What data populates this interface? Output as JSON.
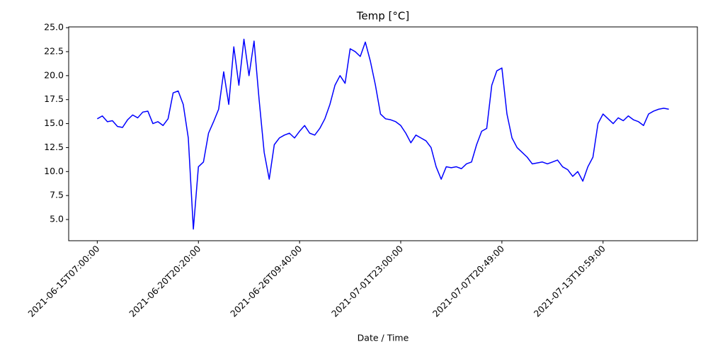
{
  "chart_data": {
    "type": "line",
    "title": "Temp [°C]",
    "xlabel": "Date / Time",
    "categories": [
      "2021-06-15T07:00:00",
      null,
      null,
      null,
      null,
      null,
      null,
      null,
      null,
      null,
      null,
      null,
      null,
      null,
      null,
      null,
      null,
      null,
      null,
      null,
      "2021-06-20T20:20:00",
      null,
      null,
      null,
      null,
      null,
      null,
      null,
      null,
      null,
      null,
      null,
      null,
      null,
      null,
      null,
      null,
      null,
      null,
      null,
      "2021-06-26T09:40:00",
      null,
      null,
      null,
      null,
      null,
      null,
      null,
      null,
      null,
      null,
      null,
      null,
      null,
      null,
      null,
      null,
      null,
      null,
      null,
      "2021-07-01T23:00:00",
      null,
      null,
      null,
      null,
      null,
      null,
      null,
      null,
      null,
      null,
      null,
      null,
      null,
      null,
      null,
      null,
      null,
      null,
      null,
      "2021-07-07T20:49:00",
      null,
      null,
      null,
      null,
      null,
      null,
      null,
      null,
      null,
      null,
      null,
      null,
      null,
      null,
      null,
      null,
      null,
      null,
      null,
      "2021-07-13T10:59:00",
      null,
      null,
      null,
      null,
      null,
      null,
      null,
      null,
      null,
      null,
      null,
      null,
      null
    ],
    "values": [
      15.5,
      15.8,
      15.2,
      15.3,
      14.7,
      14.6,
      15.4,
      15.9,
      15.6,
      16.2,
      16.3,
      15.0,
      15.2,
      14.8,
      15.5,
      18.2,
      18.4,
      17.0,
      13.5,
      4.0,
      10.5,
      11.0,
      14.0,
      15.2,
      16.5,
      20.4,
      17.0,
      23.0,
      19.0,
      23.8,
      20.0,
      23.6,
      17.5,
      12.0,
      9.2,
      12.8,
      13.5,
      13.8,
      14.0,
      13.5,
      14.2,
      14.8,
      14.0,
      13.8,
      14.5,
      15.5,
      17.0,
      19.0,
      20.0,
      19.2,
      22.8,
      22.5,
      22.0,
      23.5,
      21.5,
      19.0,
      16.0,
      15.5,
      15.4,
      15.2,
      14.8,
      14.0,
      13.0,
      13.8,
      13.5,
      13.2,
      12.5,
      10.5,
      9.2,
      10.5,
      10.4,
      10.5,
      10.3,
      10.8,
      11.0,
      12.8,
      14.2,
      14.5,
      19.0,
      20.5,
      20.8,
      16.0,
      13.5,
      12.5,
      12.0,
      11.5,
      10.8,
      10.9,
      11.0,
      10.8,
      11.0,
      11.2,
      10.5,
      10.2,
      9.5,
      10.0,
      9.0,
      10.5,
      11.5,
      15.0,
      16.0,
      15.5,
      15.0,
      15.6,
      15.3,
      15.8,
      15.4,
      15.2,
      14.8,
      16.0,
      16.3,
      16.5,
      16.6,
      16.5
    ],
    "color": "blue",
    "ylim": [
      2.79,
      25.08
    ],
    "yticks": [
      {
        "value": 5,
        "label": "5.0"
      },
      {
        "value": 7.5,
        "label": "7.5"
      },
      {
        "value": 10,
        "label": "10.0"
      },
      {
        "value": 12.5,
        "label": "12.5"
      },
      {
        "value": 15,
        "label": "15.0"
      },
      {
        "value": 17.5,
        "label": "17.5"
      },
      {
        "value": 20,
        "label": "20.0"
      },
      {
        "value": 22.5,
        "label": "22.5"
      },
      {
        "value": 25,
        "label": "25.0"
      }
    ]
  }
}
